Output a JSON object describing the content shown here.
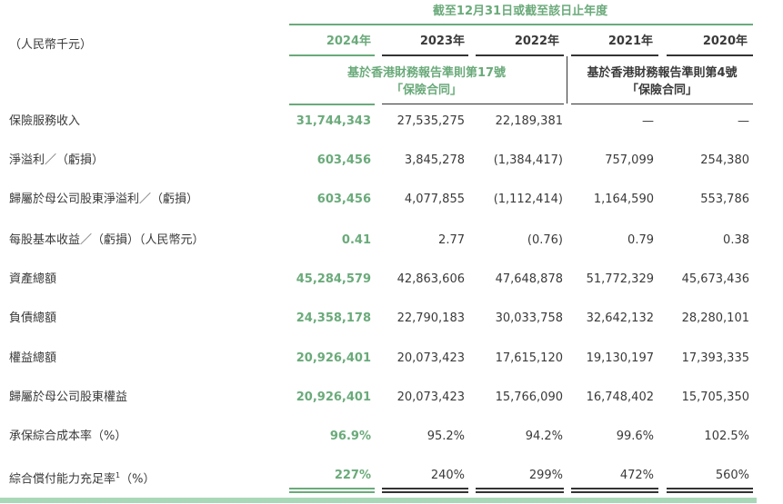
{
  "header": {
    "period_title": "截至12月31日或截至該日止年度",
    "unit": "（人民幣千元）",
    "years": [
      "2024年",
      "2023年",
      "2022年",
      "2021年",
      "2020年"
    ],
    "basis_ifrs17_line1": "基於香港財務報告準則第17號",
    "basis_ifrs17_line2": "「保險合同」",
    "basis_ifrs4_line1": "基於香港財務報告準則第4號",
    "basis_ifrs4_line2": "「保險合同」"
  },
  "rows": [
    {
      "label": "保險服務收入",
      "values": [
        "31,744,343",
        "27,535,275",
        "22,189,381",
        "—",
        "—"
      ]
    },
    {
      "label": "淨溢利／（虧損）",
      "values": [
        "603,456",
        "3,845,278",
        "(1,384,417)",
        "757,099",
        "254,380"
      ]
    },
    {
      "label": "歸屬於母公司股東淨溢利／（虧損）",
      "values": [
        "603,456",
        "4,077,855",
        "(1,112,414)",
        "1,164,590",
        "553,786"
      ]
    },
    {
      "label": "每股基本收益／（虧損）（人民幣元）",
      "values": [
        "0.41",
        "2.77",
        "(0.76)",
        "0.79",
        "0.38"
      ]
    },
    {
      "label": "資產總額",
      "values": [
        "45,284,579",
        "42,863,606",
        "47,648,878",
        "51,772,329",
        "45,673,436"
      ]
    },
    {
      "label": "負債總額",
      "values": [
        "24,358,178",
        "22,790,183",
        "30,033,758",
        "32,642,132",
        "28,280,101"
      ]
    },
    {
      "label": "權益總額",
      "values": [
        "20,926,401",
        "20,073,423",
        "17,615,120",
        "19,130,197",
        "17,393,335"
      ]
    },
    {
      "label": "歸屬於母公司股東權益",
      "values": [
        "20,926,401",
        "20,073,423",
        "15,766,090",
        "16,748,402",
        "15,705,350"
      ]
    },
    {
      "label": "承保綜合成本率（%）",
      "values": [
        "96.9%",
        "95.2%",
        "94.2%",
        "99.6%",
        "102.5%"
      ]
    },
    {
      "label": "綜合償付能力充足率",
      "label_sup": "1",
      "label_suffix": "（%）",
      "values": [
        "227%",
        "240%",
        "299%",
        "472%",
        "560%"
      ]
    }
  ],
  "colors": {
    "accent_green": "#6aaa7a",
    "light_green": "#a9d8b8",
    "dark_line": "#333333"
  }
}
